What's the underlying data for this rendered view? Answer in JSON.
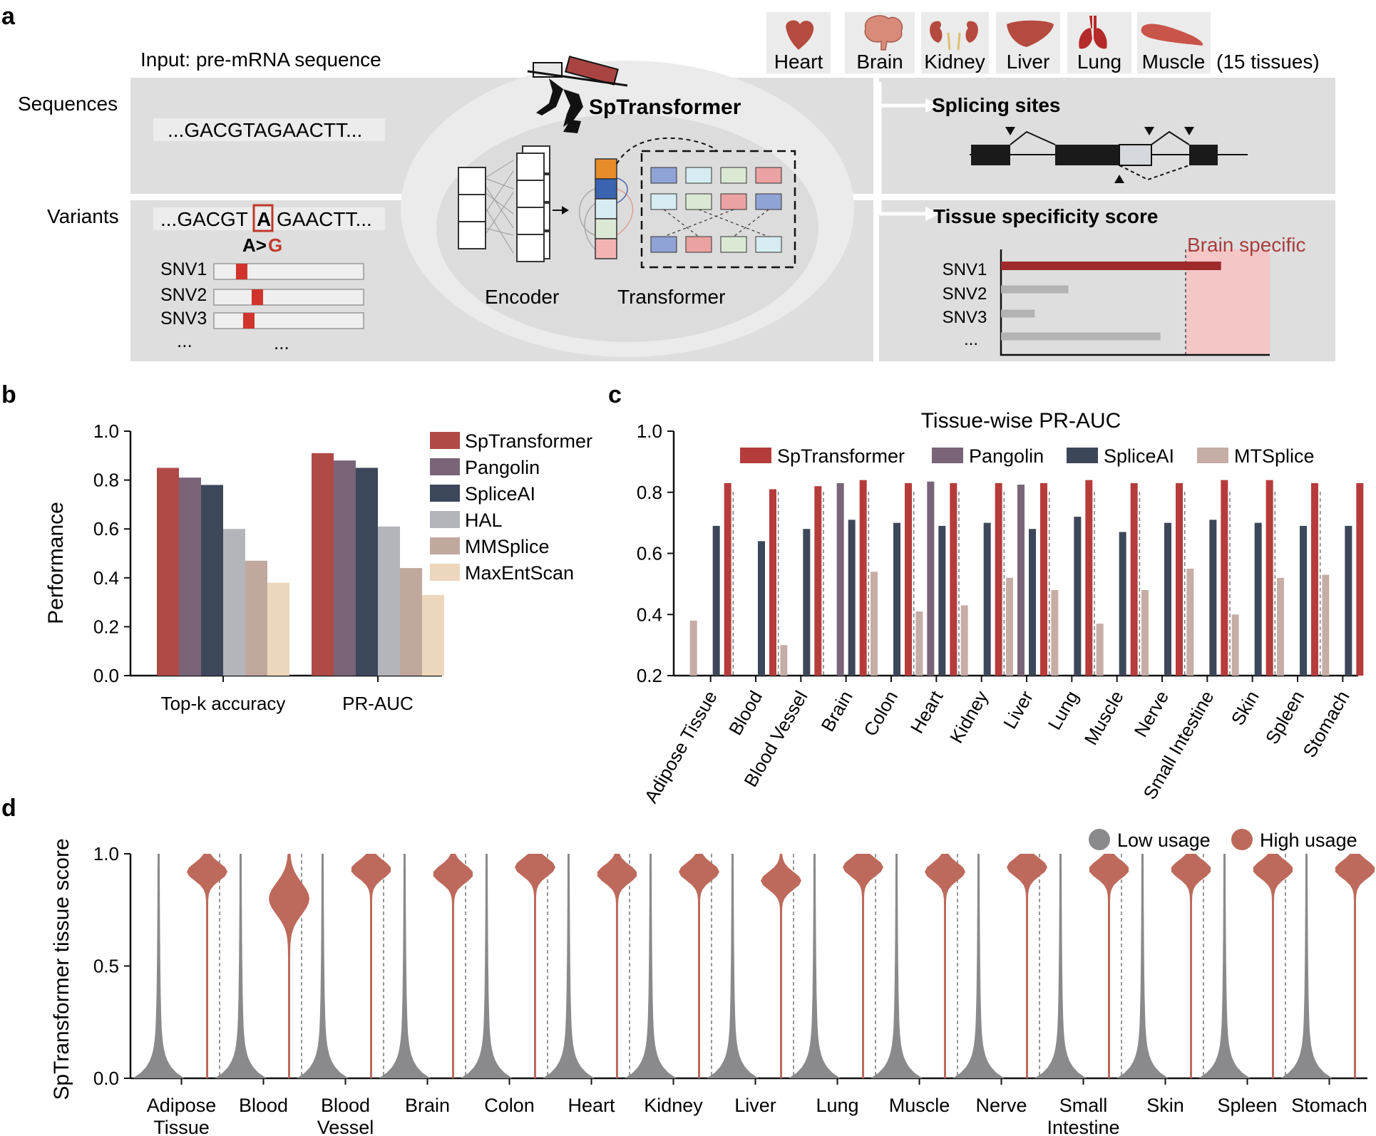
{
  "panel_a": {
    "label": "a",
    "input_label": "Input: pre-mRNA sequence",
    "sequences_label": "Sequences",
    "variants_label": "Variants",
    "sequence_text": "...GACGTAGAACTT...",
    "variant_prefix": "...GACGT",
    "variant_base": "A",
    "variant_suffix": "GAACTT...",
    "mutation_ref": "A>",
    "mutation_alt": "G",
    "snv_labels": [
      "SNV1",
      "SNV2",
      "SNV3"
    ],
    "snv_ellipsis_left": "...",
    "snv_ellipsis_right": "...",
    "model_name": "SpTransformer",
    "encoder_label": "Encoder",
    "transformer_label": "Transformer",
    "tissues": [
      "Heart",
      "Brain",
      "Kidney",
      "Liver",
      "Lung",
      "Muscle"
    ],
    "tissue_count": "(15 tissues)",
    "splicing_sites_label": "Splicing sites",
    "tissue_score_label": "Tissue specificity score",
    "brain_specific_label": "Brain specific",
    "score_rows": [
      "SNV1",
      "SNV2",
      "SNV3",
      "..."
    ],
    "score_values": [
      0.98,
      0.3,
      0.15,
      0.71
    ],
    "colors": {
      "accent_red": "#9e2a2b",
      "pink": "#f4c6c6",
      "grey_bar": "#b3b3b3",
      "panel_bg": "#dedede"
    }
  },
  "chart_data": [
    {
      "panel": "b",
      "type": "bar",
      "title": "",
      "ylabel": "Performance",
      "ylim": [
        0,
        1
      ],
      "yticks": [
        "0.0",
        "0.2",
        "0.4",
        "0.6",
        "0.8",
        "1.0"
      ],
      "categories": [
        "Top-k accuracy",
        "PR-AUC"
      ],
      "series": [
        {
          "name": "SpTransformer",
          "color": "#b04a47",
          "values": [
            0.85,
            0.91
          ]
        },
        {
          "name": "Pangolin",
          "color": "#7a6478",
          "values": [
            0.81,
            0.88
          ]
        },
        {
          "name": "SpliceAI",
          "color": "#3d475a",
          "values": [
            0.78,
            0.85
          ]
        },
        {
          "name": "HAL",
          "color": "#b3b5bb",
          "values": [
            0.6,
            0.61
          ]
        },
        {
          "name": "MMSplice",
          "color": "#c0a89f",
          "values": [
            0.47,
            0.44
          ]
        },
        {
          "name": "MaxEntScan",
          "color": "#ecd7bd",
          "values": [
            0.38,
            0.33
          ]
        }
      ],
      "legend": "right"
    },
    {
      "panel": "c",
      "type": "bar",
      "title": "Tissue-wise PR-AUC",
      "ylim": [
        0.2,
        1.0
      ],
      "yticks": [
        "0.2",
        "0.4",
        "0.6",
        "0.8",
        "1.0"
      ],
      "categories": [
        "Adipose Tissue",
        "Blood",
        "Blood Vessel",
        "Brain",
        "Colon",
        "Heart",
        "Kidney",
        "Liver",
        "Lung",
        "Muscle",
        "Nerve",
        "Small Intestine",
        "Skin",
        "Spleen",
        "Stomach"
      ],
      "series": [
        {
          "name": "MTSplice",
          "color": "#c6ada6",
          "values": [
            0.38,
            null,
            0.3,
            null,
            0.54,
            0.41,
            0.43,
            0.52,
            0.48,
            0.37,
            0.48,
            0.55,
            0.4,
            0.52,
            0.53
          ]
        },
        {
          "name": "Pangolin",
          "color": "#7a6478",
          "values": [
            null,
            null,
            null,
            0.83,
            null,
            0.835,
            null,
            0.825,
            null,
            null,
            null,
            null,
            null,
            null,
            null
          ]
        },
        {
          "name": "SpliceAI",
          "color": "#3d475a",
          "values": [
            0.69,
            0.64,
            0.68,
            0.71,
            0.7,
            0.69,
            0.7,
            0.68,
            0.72,
            0.67,
            0.7,
            0.71,
            0.7,
            0.69,
            0.69
          ]
        },
        {
          "name": "SpTransformer",
          "color": "#b63b3b",
          "values": [
            0.83,
            0.81,
            0.82,
            0.84,
            0.83,
            0.83,
            0.83,
            0.83,
            0.84,
            0.83,
            0.83,
            0.84,
            0.84,
            0.83,
            0.83
          ]
        }
      ],
      "legend_order": [
        "SpTransformer",
        "Pangolin",
        "SpliceAI",
        "MTSplice"
      ],
      "legend": "top"
    },
    {
      "panel": "d",
      "type": "violin",
      "ylabel": "SpTransformer tissue score",
      "ylim": [
        0,
        1
      ],
      "yticks": [
        "0.0",
        "0.5",
        "1.0"
      ],
      "categories": [
        [
          "Adipose",
          "Tissue"
        ],
        [
          "Blood"
        ],
        [
          "Blood",
          "Vessel"
        ],
        [
          "Brain"
        ],
        [
          "Colon"
        ],
        [
          "Heart"
        ],
        [
          "Kidney"
        ],
        [
          "Liver"
        ],
        [
          "Lung"
        ],
        [
          "Muscle"
        ],
        [
          "Nerve"
        ],
        [
          "Small",
          "Intestine"
        ],
        [
          "Skin"
        ],
        [
          "Spleen"
        ],
        [
          "Stomach"
        ]
      ],
      "series": [
        {
          "name": "Low usage",
          "color": "#8a8a8c"
        },
        {
          "name": "High usage",
          "color": "#bd6a5c"
        }
      ],
      "high_usage_mode": [
        0.92,
        0.8,
        0.93,
        0.91,
        0.94,
        0.91,
        0.92,
        0.88,
        0.94,
        0.92,
        0.94,
        0.93,
        0.93,
        0.93,
        0.93
      ],
      "legend": "top-right"
    }
  ]
}
